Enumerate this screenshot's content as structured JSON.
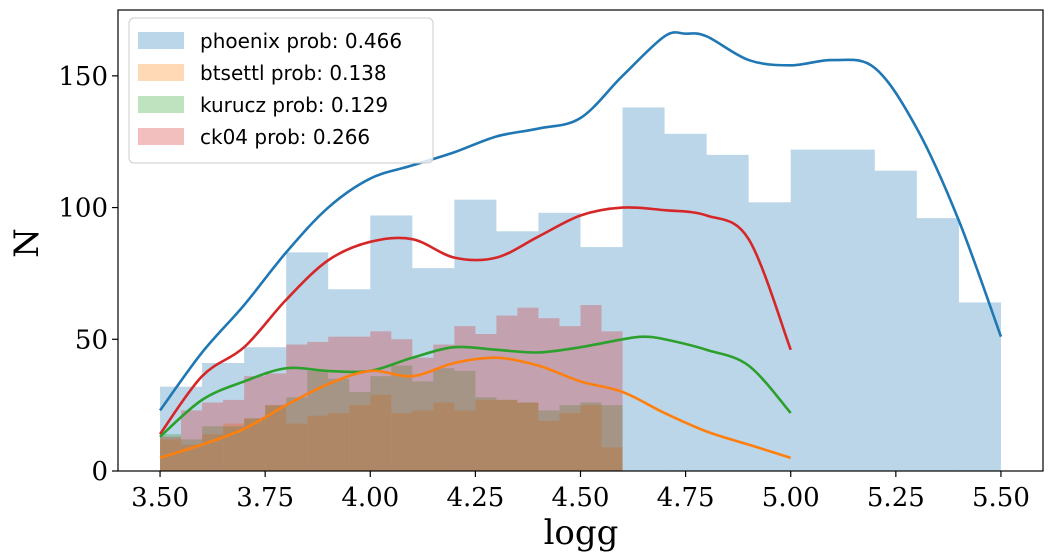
{
  "chart_data": {
    "type": "histogram",
    "xlabel": "logg",
    "ylabel": "N",
    "xlim": [
      3.4,
      5.6
    ],
    "ylim": [
      0,
      175
    ],
    "xticks": [
      3.5,
      3.75,
      4.0,
      4.25,
      4.5,
      4.75,
      5.0,
      5.25,
      5.5
    ],
    "xtick_labels": [
      "3.50",
      "3.75",
      "4.00",
      "4.25",
      "4.50",
      "4.75",
      "5.00",
      "5.25",
      "5.50"
    ],
    "yticks": [
      0,
      50,
      100,
      150
    ],
    "ytick_labels": [
      "0",
      "50",
      "100",
      "150"
    ],
    "grid": false,
    "legend_position": "top-left",
    "series": [
      {
        "name": "phoenix prob: 0.466",
        "color": "#1f77b4",
        "bin_start": 3.5,
        "bin_width": 0.1,
        "counts": [
          32,
          41,
          47,
          83,
          69,
          97,
          77,
          103,
          91,
          98,
          85,
          138,
          128,
          120,
          102,
          122,
          122,
          114,
          96,
          64
        ],
        "kde_x": [
          3.5,
          3.6,
          3.7,
          3.8,
          3.9,
          4.0,
          4.1,
          4.2,
          4.3,
          4.4,
          4.5,
          4.6,
          4.7,
          4.75,
          4.8,
          4.9,
          5.0,
          5.1,
          5.2,
          5.3,
          5.4,
          5.5
        ],
        "kde_y": [
          23,
          45,
          63,
          83,
          100,
          111,
          116,
          121,
          127,
          130,
          134,
          150,
          165,
          166,
          165,
          156,
          154,
          156,
          153,
          130,
          95,
          51
        ]
      },
      {
        "name": "btsettl prob: 0.138",
        "color": "#ff7f0e",
        "bin_start": 3.5,
        "bin_width": 0.05,
        "counts": [
          12,
          10,
          14,
          18,
          20,
          25,
          18,
          21,
          22,
          25,
          29,
          22,
          23,
          26,
          23,
          27,
          27,
          26,
          19,
          22,
          25,
          9
        ],
        "kde_x": [
          3.5,
          3.6,
          3.7,
          3.8,
          3.9,
          4.0,
          4.1,
          4.2,
          4.3,
          4.4,
          4.5,
          4.6,
          4.7,
          4.8,
          4.9,
          5.0
        ],
        "kde_y": [
          5,
          10,
          16,
          25,
          33,
          38,
          36,
          41,
          43,
          40,
          34,
          30,
          22,
          15,
          10,
          5
        ]
      },
      {
        "name": "kurucz prob: 0.129",
        "color": "#2ca02c",
        "bin_start": 3.5,
        "bin_width": 0.05,
        "counts": [
          14,
          12,
          17,
          17,
          20,
          25,
          28,
          38,
          35,
          30,
          36,
          40,
          34,
          39,
          38,
          28,
          27,
          26,
          23,
          25,
          26,
          25
        ],
        "kde_x": [
          3.5,
          3.6,
          3.7,
          3.8,
          3.9,
          4.0,
          4.1,
          4.2,
          4.3,
          4.4,
          4.5,
          4.6,
          4.65,
          4.7,
          4.8,
          4.9,
          5.0
        ],
        "kde_y": [
          13,
          27,
          34,
          39,
          38,
          38,
          43,
          47,
          46,
          45,
          47,
          50,
          51,
          50,
          46,
          40,
          22
        ]
      },
      {
        "name": "ck04 prob: 0.266",
        "color": "#d62728",
        "bin_start": 3.5,
        "bin_width": 0.05,
        "counts": [
          13,
          23,
          26,
          27,
          36,
          37,
          48,
          49,
          51,
          51,
          53,
          50,
          43,
          48,
          55,
          52,
          59,
          62,
          58,
          55,
          63,
          53
        ],
        "kde_x": [
          3.5,
          3.6,
          3.7,
          3.8,
          3.9,
          4.0,
          4.1,
          4.2,
          4.3,
          4.4,
          4.5,
          4.6,
          4.7,
          4.8,
          4.9,
          5.0
        ],
        "kde_y": [
          14,
          36,
          47,
          65,
          80,
          87,
          88,
          81,
          81,
          89,
          97,
          100,
          99,
          97,
          88,
          46
        ]
      }
    ]
  }
}
